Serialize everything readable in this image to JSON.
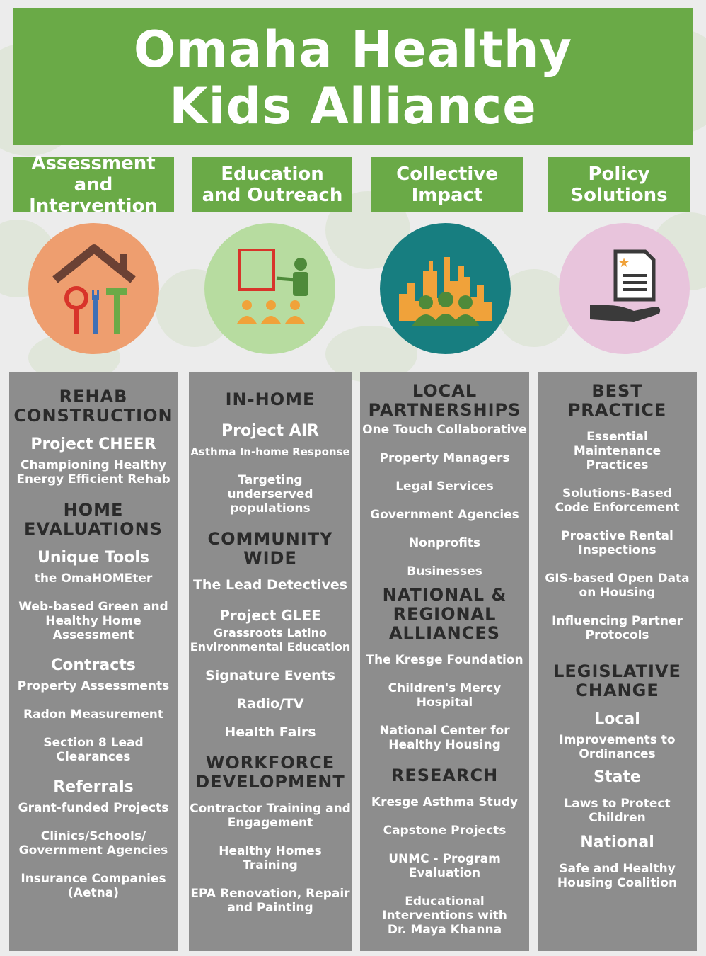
{
  "title": {
    "line1": "Omaha Healthy",
    "line2": "Kids Alliance"
  },
  "colors": {
    "green": "#6aaa47",
    "gray_column": "#8d8d8d",
    "orange_circle": "#ee9e6f",
    "light_green_circle": "#b7dca0",
    "teal_circle": "#177e80",
    "pink_circle": "#e8c4dc"
  },
  "categories": [
    {
      "line1": "Assessment and",
      "line2": "Intervention",
      "icon": "house-tools-icon"
    },
    {
      "line1": "Education",
      "line2": "and Outreach",
      "icon": "teacher-presentation-icon"
    },
    {
      "line1": "Collective",
      "line2": "Impact",
      "icon": "city-community-icon"
    },
    {
      "line1": "Policy",
      "line2": "Solutions",
      "icon": "hand-document-icon"
    }
  ],
  "col1": {
    "h1a": "REHAB",
    "h1b": "CONSTRUCTION",
    "s1": "Project CHEER",
    "i1a": "Championing Healthy",
    "i1b": "Energy Efficient Rehab",
    "h2a": "HOME",
    "h2b": "EVALUATIONS",
    "s2": "Unique Tools",
    "i2": "the OmaHOMEter",
    "i3a": "Web-based Green and",
    "i3b": "Healthy Home",
    "i3c": "Assessment",
    "s3": "Contracts",
    "i4": "Property Assessments",
    "i5": "Radon Measurement",
    "i6a": "Section 8 Lead",
    "i6b": "Clearances",
    "s4": "Referrals",
    "i7": "Grant-funded Projects",
    "i8a": "Clinics/Schools/",
    "i8b": "Government Agencies",
    "i9a": "Insurance Companies",
    "i9b": "(Aetna)"
  },
  "col2": {
    "h1": "IN-HOME",
    "s1": "Project AIR",
    "i1": "Asthma In-home Response",
    "i2a": "Targeting",
    "i2b": "underserved",
    "i2c": "populations",
    "h2a": "COMMUNITY",
    "h2b": "WIDE",
    "i3": "The Lead Detectives",
    "s2": "Project GLEE",
    "i4a": "Grassroots Latino",
    "i4b": "Environmental Education",
    "i5": "Signature Events",
    "i6": "Radio/TV",
    "i7": "Health Fairs",
    "h3a": "WORKFORCE",
    "h3b": "DEVELOPMENT",
    "i8a": "Contractor Training and",
    "i8b": "Engagement",
    "i9a": "Healthy Homes",
    "i9b": "Training",
    "i10a": "EPA Renovation, Repair",
    "i10b": "and Painting"
  },
  "col3": {
    "h1a": "LOCAL",
    "h1b": "PARTNERSHIPS",
    "i1": "One Touch Collaborative",
    "i2": "Property Managers",
    "i3": "Legal Services",
    "i4": "Government Agencies",
    "i5": "Nonprofits",
    "i6": "Businesses",
    "h2a": "NATIONAL &",
    "h2b": "REGIONAL",
    "h2c": "ALLIANCES",
    "i7": "The Kresge Foundation",
    "i8": "Children's Mercy Hospital",
    "i9a": "National Center for",
    "i9b": "Healthy Housing",
    "h3": "RESEARCH",
    "i10": "Kresge Asthma Study",
    "i11": "Capstone Projects",
    "i12a": "UNMC -  Program",
    "i12b": "Evaluation",
    "i13a": "Educational",
    "i13b": "Interventions with",
    "i13c": "Dr. Maya Khanna"
  },
  "col4": {
    "h1a": "BEST",
    "h1b": "PRACTICE",
    "i1a": "Essential",
    "i1b": "Maintenance",
    "i1c": "Practices",
    "i2a": "Solutions-Based",
    "i2b": "Code Enforcement",
    "i3a": "Proactive Rental",
    "i3b": "Inspections",
    "i4a": "GIS-based Open Data",
    "i4b": "on Housing",
    "i5a": "Influencing Partner",
    "i5b": "Protocols",
    "h2a": "LEGISLATIVE",
    "h2b": "CHANGE",
    "s1": "Local",
    "i6a": "Improvements to",
    "i6b": "Ordinances",
    "s2": "State",
    "i7a": "Laws to Protect",
    "i7b": "Children",
    "s3": "National",
    "i8a": "Safe and Healthy",
    "i8b": "Housing Coalition"
  }
}
